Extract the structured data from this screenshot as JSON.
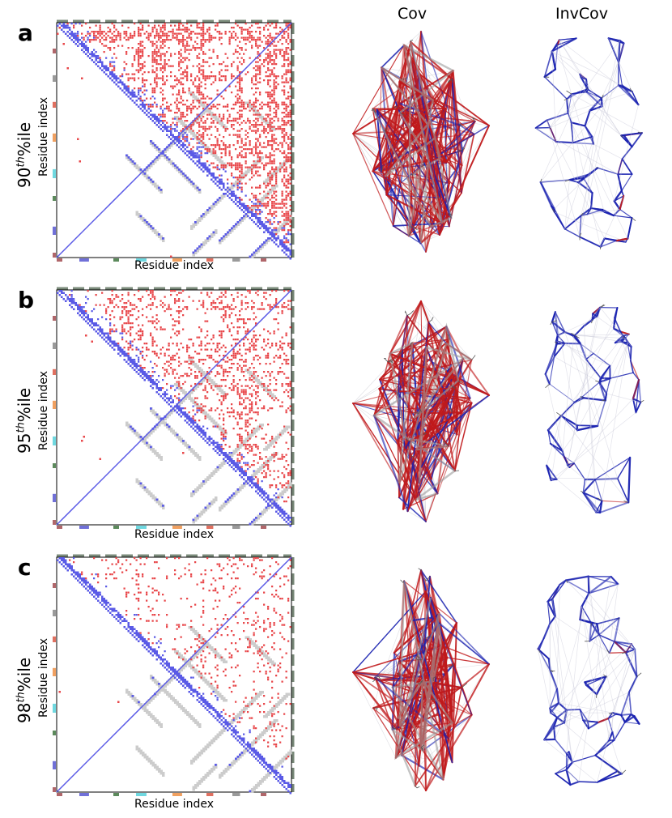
{
  "column_titles": {
    "cov": "Cov",
    "invcov": "InvCov"
  },
  "panels": [
    {
      "letter": "a",
      "percentile_value": "90",
      "percentile_sup": "th",
      "percentile_suffix": "%ile",
      "ylabel": "Residue index",
      "xlabel": "Residue index",
      "upper_density": 0.23,
      "lower_density": 0.1
    },
    {
      "letter": "b",
      "percentile_value": "95",
      "percentile_sup": "th",
      "percentile_suffix": "%ile",
      "ylabel": "Residue index",
      "xlabel": "Residue index",
      "upper_density": 0.15,
      "lower_density": 0.05
    },
    {
      "letter": "c",
      "percentile_value": "98",
      "percentile_sup": "th",
      "percentile_suffix": "%ile",
      "ylabel": "Residue index",
      "xlabel": "Residue index",
      "upper_density": 0.06,
      "lower_density": 0.012
    }
  ],
  "colors": {
    "positive": "#e8474a",
    "negative": "#5a5ae6",
    "contact": "#cccccc",
    "network_red": "#c0191b",
    "network_blue": "#1a22b0",
    "segments": [
      "#b0666a",
      "#7070d8",
      "#5c8a5c",
      "#6fd8e0",
      "#f0a060",
      "#e07060",
      "#9a9a9a"
    ]
  }
}
